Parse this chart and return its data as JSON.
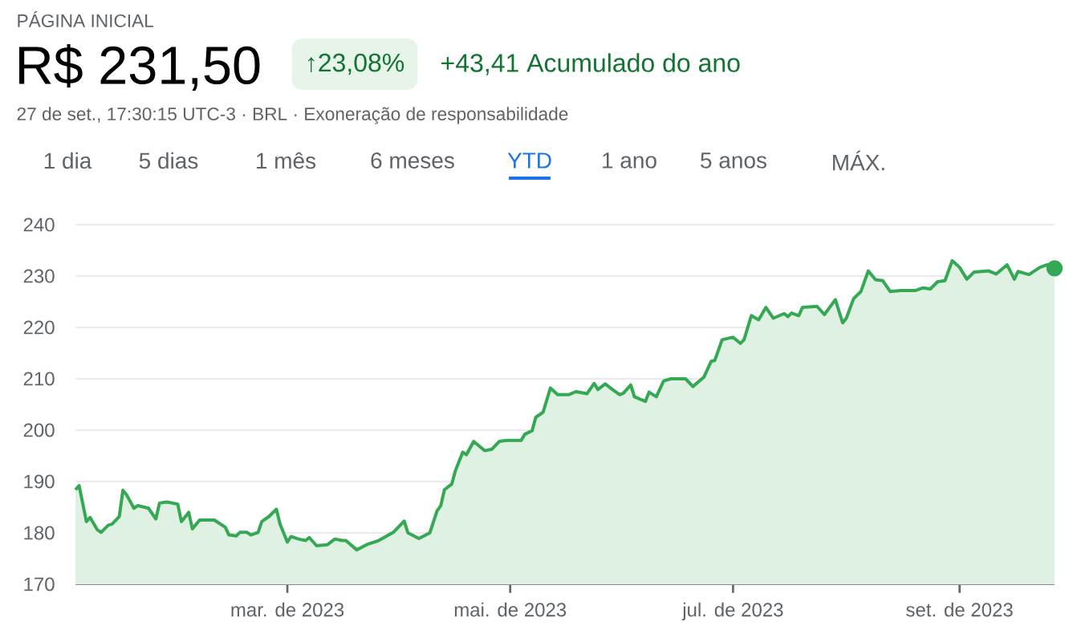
{
  "chart_data": {
    "type": "area",
    "title": "R$ 231,50",
    "annotations": [
      "PÁGINA INICIAL",
      "↑23,08%",
      "+43,41 Acumulado do ano",
      "27 de set., 17:30:15 UTC-3 · BRL · Exoneração de responsabilidade",
      "1 dia",
      "5 dias",
      "1 mês",
      "6 meses",
      "YTD",
      "1 ano",
      "5 anos",
      "MÁX."
    ],
    "xlim": [
      "2023-01-02",
      "2023-09-27"
    ],
    "xticks": [
      {
        "value": "2023-03-01",
        "label": "mar. de 2023"
      },
      {
        "value": "2023-05-01",
        "label": "mai. de 2023"
      },
      {
        "value": "2023-07-01",
        "label": "jul. de 2023"
      },
      {
        "value": "2023-09-01",
        "label": "set. de 2023"
      }
    ],
    "ylim": [
      170,
      240
    ],
    "yticks": [
      170,
      180,
      190,
      200,
      210,
      220,
      230,
      240
    ],
    "grid": "y",
    "series": [
      {
        "color": "#34a853",
        "x": [
          "2023-01-02",
          "2023-01-03",
          "2023-01-05",
          "2023-01-06",
          "2023-01-08",
          "2023-01-09",
          "2023-01-11",
          "2023-01-12",
          "2023-01-14",
          "2023-01-15",
          "2023-01-16",
          "2023-01-18",
          "2023-01-19",
          "2023-01-22",
          "2023-01-24",
          "2023-01-25",
          "2023-01-27",
          "2023-01-30",
          "2023-01-31",
          "2023-02-02",
          "2023-02-03",
          "2023-02-05",
          "2023-02-09",
          "2023-02-12",
          "2023-02-13",
          "2023-02-15",
          "2023-02-16",
          "2023-02-18",
          "2023-02-19",
          "2023-02-21",
          "2023-02-22",
          "2023-02-24",
          "2023-02-26",
          "2023-02-27",
          "2023-03-01",
          "2023-03-02",
          "2023-03-04",
          "2023-03-06",
          "2023-03-07",
          "2023-03-09",
          "2023-03-12",
          "2023-03-14",
          "2023-03-16",
          "2023-03-17",
          "2023-03-20",
          "2023-03-23",
          "2023-03-26",
          "2023-03-30",
          "2023-04-02",
          "2023-04-03",
          "2023-04-06",
          "2023-04-09",
          "2023-04-11",
          "2023-04-12",
          "2023-04-13",
          "2023-04-15",
          "2023-04-16",
          "2023-04-18",
          "2023-04-19",
          "2023-04-21",
          "2023-04-24",
          "2023-04-26",
          "2023-04-28",
          "2023-04-30",
          "2023-05-04",
          "2023-05-05",
          "2023-05-07",
          "2023-05-08",
          "2023-05-10",
          "2023-05-12",
          "2023-05-14",
          "2023-05-17",
          "2023-05-19",
          "2023-05-22",
          "2023-05-24",
          "2023-05-25",
          "2023-05-27",
          "2023-05-29",
          "2023-05-31",
          "2023-06-01",
          "2023-06-03",
          "2023-06-04",
          "2023-06-07",
          "2023-06-08",
          "2023-06-10",
          "2023-06-12",
          "2023-06-14",
          "2023-06-18",
          "2023-06-20",
          "2023-06-23",
          "2023-06-25",
          "2023-06-26",
          "2023-06-28",
          "2023-07-01",
          "2023-07-03",
          "2023-07-04",
          "2023-07-06",
          "2023-07-08",
          "2023-07-10",
          "2023-07-12",
          "2023-07-15",
          "2023-07-16",
          "2023-07-17",
          "2023-07-19",
          "2023-07-20",
          "2023-07-24",
          "2023-07-26",
          "2023-07-29",
          "2023-07-31",
          "2023-08-01",
          "2023-08-03",
          "2023-08-05",
          "2023-08-07",
          "2023-08-09",
          "2023-08-11",
          "2023-08-13",
          "2023-08-16",
          "2023-08-20",
          "2023-08-22",
          "2023-08-24",
          "2023-08-26",
          "2023-08-28",
          "2023-08-30",
          "2023-09-01",
          "2023-09-03",
          "2023-09-05",
          "2023-09-09",
          "2023-09-11",
          "2023-09-14",
          "2023-09-16",
          "2023-09-17",
          "2023-09-20",
          "2023-09-23",
          "2023-09-25",
          "2023-09-27"
        ],
        "values": [
          188.4,
          189.2,
          182.2,
          183.0,
          180.6,
          180.1,
          181.5,
          181.7,
          183.2,
          188.3,
          187.4,
          184.8,
          185.3,
          184.8,
          182.7,
          185.8,
          186.0,
          185.6,
          182.2,
          184.0,
          180.8,
          182.5,
          182.5,
          181.1,
          179.6,
          179.4,
          180.1,
          180.1,
          179.6,
          180.1,
          182.2,
          183.2,
          184.6,
          181.7,
          178.2,
          179.3,
          178.8,
          178.5,
          179.1,
          177.5,
          177.7,
          178.8,
          178.5,
          178.5,
          176.7,
          177.8,
          178.5,
          180.1,
          182.3,
          180.0,
          178.9,
          180.0,
          184.3,
          185.3,
          188.4,
          189.5,
          192.1,
          195.7,
          195.2,
          197.8,
          196.0,
          196.3,
          197.8,
          198.0,
          198.0,
          199.2,
          199.9,
          202.5,
          203.5,
          208.2,
          206.9,
          206.9,
          207.5,
          207.1,
          209.1,
          207.9,
          209.0,
          207.9,
          206.9,
          207.2,
          208.8,
          206.5,
          205.6,
          207.4,
          206.5,
          209.6,
          210.0,
          210.0,
          208.5,
          210.3,
          213.4,
          213.6,
          217.6,
          218.1,
          216.9,
          217.6,
          222.3,
          221.5,
          223.9,
          221.8,
          222.7,
          222.1,
          222.8,
          222.3,
          223.9,
          224.1,
          222.5,
          225.4,
          220.9,
          221.8,
          225.6,
          227.0,
          231.0,
          229.3,
          229.1,
          227.0,
          227.2,
          227.2,
          227.7,
          227.5,
          228.9,
          229.1,
          233.0,
          231.7,
          229.4,
          230.8,
          231.0,
          230.4,
          232.2,
          229.4,
          230.9,
          230.3,
          231.7,
          232.2,
          231.5
        ]
      },
      {
        "type": "scatter",
        "color": "#34a853",
        "marker": "circle",
        "x": [
          "2023-09-27"
        ],
        "values": [
          231.5
        ]
      }
    ]
  }
}
